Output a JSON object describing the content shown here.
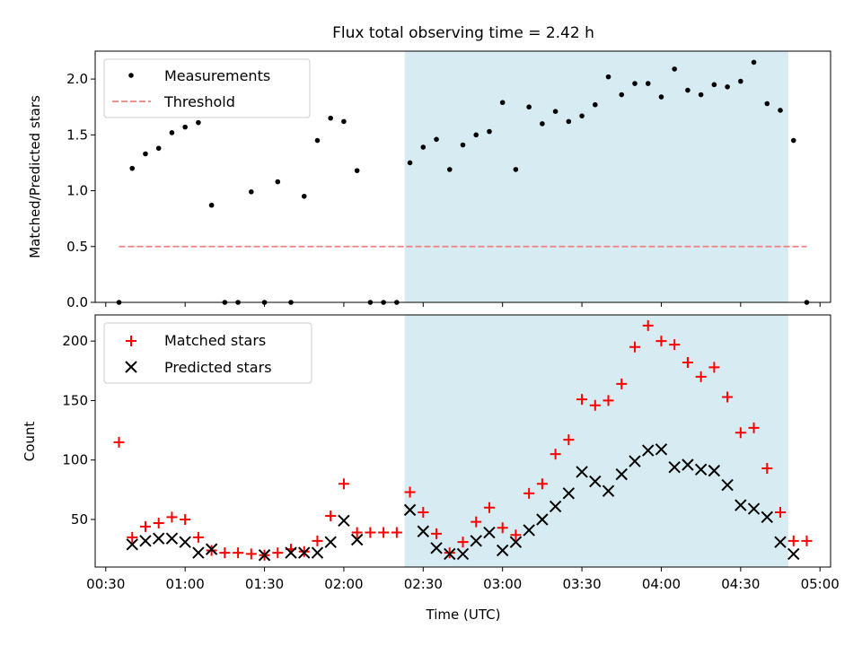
{
  "title": "Flux total observing time = 2.42 h",
  "colors": {
    "measurement": "#000000",
    "threshold": "#f08080",
    "matched": "#ff0000",
    "predicted": "#000000",
    "observing_window": "#add8e6"
  },
  "chart_data": [
    {
      "type": "scatter",
      "ylabel": "Matched/Predicted stars",
      "ylim": [
        0,
        2.25
      ],
      "xlim": [
        "00:26",
        "05:04"
      ],
      "yticks": [
        "0.0",
        "0.5",
        "1.0",
        "1.5",
        "2.0"
      ],
      "legend_position": "top-left",
      "legend": [
        "Measurements",
        "Threshold"
      ],
      "observing_window": [
        "02:23",
        "04:48"
      ],
      "threshold": {
        "value": 0.5,
        "x": [
          "00:35",
          "04:55"
        ]
      },
      "series": [
        {
          "name": "Measurements",
          "x": [
            "00:35",
            "00:40",
            "00:45",
            "00:50",
            "00:55",
            "01:00",
            "01:05",
            "01:10",
            "01:15",
            "01:20",
            "01:25",
            "01:30",
            "01:35",
            "01:40",
            "01:45",
            "01:50",
            "01:55",
            "02:00",
            "02:05",
            "02:10",
            "02:15",
            "02:20",
            "02:25",
            "02:30",
            "02:35",
            "02:40",
            "02:45",
            "02:50",
            "02:55",
            "03:00",
            "03:05",
            "03:10",
            "03:15",
            "03:20",
            "03:25",
            "03:30",
            "03:35",
            "03:40",
            "03:45",
            "03:50",
            "03:55",
            "04:00",
            "04:05",
            "04:10",
            "04:15",
            "04:20",
            "04:25",
            "04:30",
            "04:35",
            "04:40",
            "04:45",
            "04:50",
            "04:55"
          ],
          "y": [
            0.0,
            1.2,
            1.33,
            1.38,
            1.52,
            1.57,
            1.61,
            0.87,
            0.0,
            0.0,
            0.99,
            0.0,
            1.08,
            0.0,
            0.95,
            1.45,
            1.65,
            1.62,
            1.18,
            0.0,
            0.0,
            0.0,
            1.25,
            1.39,
            1.46,
            1.19,
            1.41,
            1.5,
            1.53,
            1.79,
            1.19,
            1.75,
            1.6,
            1.71,
            1.62,
            1.67,
            1.77,
            2.02,
            1.86,
            1.96,
            1.96,
            1.84,
            2.09,
            1.9,
            1.86,
            1.95,
            1.93,
            1.98,
            2.15,
            1.78,
            1.72,
            1.45,
            0.0
          ]
        }
      ]
    },
    {
      "type": "scatter",
      "xlabel": "Time (UTC)",
      "ylabel": "Count",
      "ylim": [
        10,
        222
      ],
      "xlim": [
        "00:26",
        "05:04"
      ],
      "xticks": [
        "00:30",
        "01:00",
        "01:30",
        "02:00",
        "02:30",
        "03:00",
        "03:30",
        "04:00",
        "04:30",
        "05:00"
      ],
      "yticks": [
        "50",
        "100",
        "150",
        "200"
      ],
      "legend_position": "top-left",
      "legend": [
        "Matched stars",
        "Predicted stars"
      ],
      "observing_window": [
        "02:23",
        "04:48"
      ],
      "series": [
        {
          "name": "Matched stars",
          "x": [
            "00:35",
            "00:40",
            "00:45",
            "00:50",
            "00:55",
            "01:00",
            "01:05",
            "01:10",
            "01:15",
            "01:20",
            "01:25",
            "01:30",
            "01:35",
            "01:40",
            "01:45",
            "01:50",
            "01:55",
            "02:00",
            "02:05",
            "02:10",
            "02:15",
            "02:20",
            "02:25",
            "02:30",
            "02:35",
            "02:40",
            "02:45",
            "02:50",
            "02:55",
            "03:00",
            "03:05",
            "03:10",
            "03:15",
            "03:20",
            "03:25",
            "03:30",
            "03:35",
            "03:40",
            "03:45",
            "03:50",
            "03:55",
            "04:00",
            "04:05",
            "04:10",
            "04:15",
            "04:20",
            "04:25",
            "04:30",
            "04:35",
            "04:40",
            "04:45",
            "04:50",
            "04:55"
          ],
          "y": [
            115,
            35,
            44,
            47,
            52,
            50,
            35,
            24,
            22,
            22,
            21,
            20,
            22,
            25,
            23,
            32,
            53,
            80,
            39,
            39,
            39,
            39,
            73,
            56,
            38,
            22,
            31,
            48,
            60,
            43,
            37,
            72,
            80,
            105,
            117,
            151,
            146,
            150,
            164,
            195,
            213,
            200,
            197,
            182,
            170,
            178,
            153,
            123,
            127,
            93,
            56,
            32,
            32
          ]
        },
        {
          "name": "Predicted stars",
          "x": [
            "00:40",
            "00:45",
            "00:50",
            "00:55",
            "01:00",
            "01:05",
            "01:10",
            "01:30",
            "01:40",
            "01:45",
            "01:50",
            "01:55",
            "02:00",
            "02:05",
            "02:25",
            "02:30",
            "02:35",
            "02:40",
            "02:45",
            "02:50",
            "02:55",
            "03:00",
            "03:05",
            "03:10",
            "03:15",
            "03:20",
            "03:25",
            "03:30",
            "03:35",
            "03:40",
            "03:45",
            "03:50",
            "03:55",
            "04:00",
            "04:05",
            "04:10",
            "04:15",
            "04:20",
            "04:25",
            "04:30",
            "04:35",
            "04:40",
            "04:45",
            "04:50"
          ],
          "y": [
            29,
            32,
            34,
            34,
            31,
            22,
            25,
            20,
            22,
            22,
            22,
            31,
            49,
            33,
            58,
            40,
            26,
            21,
            21,
            32,
            39,
            24,
            31,
            41,
            50,
            61,
            72,
            90,
            82,
            74,
            88,
            99,
            108,
            109,
            94,
            96,
            92,
            91,
            79,
            62,
            59,
            52,
            31,
            21
          ]
        }
      ]
    }
  ]
}
